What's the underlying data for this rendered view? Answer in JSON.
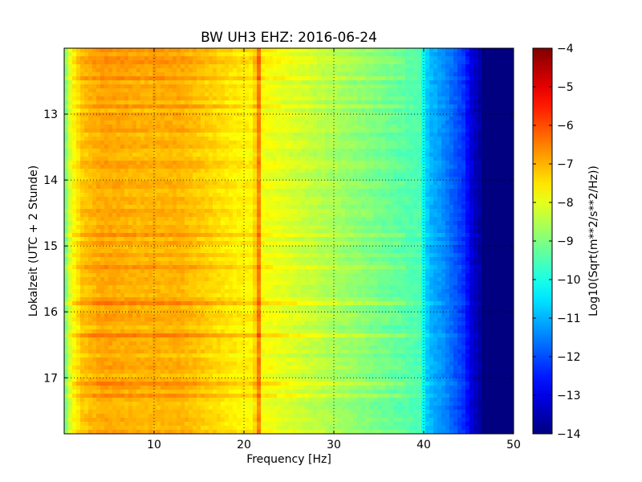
{
  "chart_data": {
    "type": "heatmap",
    "title": "BW UH3 EHZ: 2016-06-24",
    "xlabel": "Frequency [Hz]",
    "ylabel": "Lokalzeit (UTC + 2 Stunde)",
    "xlim": [
      0,
      50
    ],
    "ylim": [
      12.0,
      17.85
    ],
    "y_inverted": true,
    "x_ticks": [
      10,
      20,
      30,
      40,
      50
    ],
    "x_tick_labels": [
      "10",
      "20",
      "30",
      "40",
      "50"
    ],
    "y_ticks": [
      13,
      14,
      15,
      16,
      17
    ],
    "y_tick_labels": [
      "13",
      "14",
      "15",
      "16",
      "17"
    ],
    "grid": true,
    "colormap": "jet",
    "colorbar": {
      "label": "Log10(Sqrt(m**2/s**2/Hz))",
      "range": [
        -14,
        -4
      ],
      "ticks": [
        -4,
        -5,
        -6,
        -7,
        -8,
        -9,
        -10,
        -11,
        -12,
        -13,
        -14
      ],
      "tick_labels": [
        "−4",
        "−5",
        "−6",
        "−7",
        "−8",
        "−9",
        "−10",
        "−11",
        "−12",
        "−13",
        "−14"
      ]
    },
    "spectrum_profile": {
      "frequency_hz": [
        0,
        0.5,
        1,
        2,
        4,
        5,
        8,
        10,
        13,
        15,
        17,
        19,
        21,
        21.5,
        22,
        24,
        26,
        28,
        30,
        33,
        36,
        38,
        39.5,
        40.5,
        42,
        43,
        44.5,
        45.5,
        47,
        50
      ],
      "log10_amplitude": [
        -9.5,
        -8.3,
        -7.8,
        -7.2,
        -6.9,
        -6.9,
        -7.0,
        -7.0,
        -7.0,
        -7.2,
        -7.4,
        -7.6,
        -7.7,
        -6.8,
        -7.8,
        -8.0,
        -8.2,
        -8.4,
        -8.6,
        -8.9,
        -9.2,
        -9.4,
        -9.5,
        -10.9,
        -11.3,
        -11.7,
        -12.3,
        -13.3,
        -14.0,
        -14.0
      ]
    },
    "spectral_line_hz": 21.6,
    "colors": {
      "low": "#00007f",
      "high": "#7f0000",
      "grid": "#000000"
    }
  }
}
